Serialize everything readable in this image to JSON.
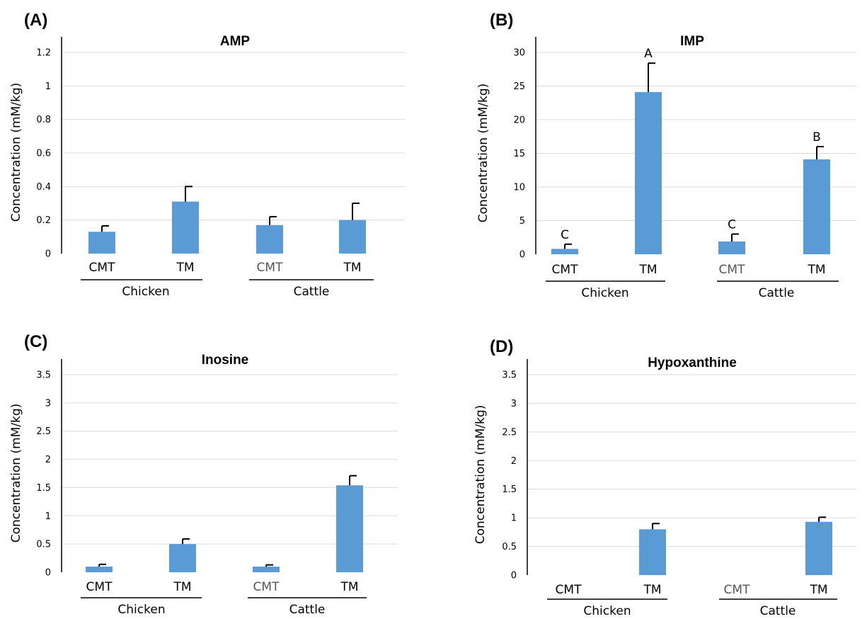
{
  "chart_data": [
    {
      "type": "bar",
      "panel": "(A)",
      "title": "AMP",
      "ylabel": "Concentration (mM/kg)",
      "ylim": [
        0,
        1.2
      ],
      "yticks": [
        "0",
        "0.2",
        "0.4",
        "0.6",
        "0.8",
        "1",
        "1.2"
      ],
      "categories": [
        "CMT",
        "TM",
        "CMT",
        "TM"
      ],
      "groups": [
        "Chicken",
        "Cattle"
      ],
      "values": [
        0.13,
        0.31,
        0.17,
        0.2
      ],
      "errors": [
        0.035,
        0.09,
        0.05,
        0.1
      ],
      "sig_labels": [
        "",
        "",
        "",
        ""
      ],
      "grid": true,
      "bar_color": "#5b9bd5"
    },
    {
      "type": "bar",
      "panel": "(B)",
      "title": "IMP",
      "ylabel": "Concentration (mM/kg)",
      "ylim": [
        0,
        30
      ],
      "yticks": [
        "0",
        "5",
        "10",
        "15",
        "20",
        "25",
        "30"
      ],
      "categories": [
        "CMT",
        "TM",
        "CMT",
        "TM"
      ],
      "groups": [
        "Chicken",
        "Cattle"
      ],
      "values": [
        0.8,
        24.1,
        1.9,
        14.1
      ],
      "errors": [
        0.7,
        4.3,
        1.1,
        1.9
      ],
      "sig_labels": [
        "C",
        "A",
        "C",
        "B"
      ],
      "grid": true,
      "bar_color": "#5b9bd5"
    },
    {
      "type": "bar",
      "panel": "(C)",
      "title": "Inosine",
      "ylabel": "Concentration (mM/kg)",
      "ylim": [
        0,
        3.5
      ],
      "yticks": [
        "0",
        "0.5",
        "1",
        "1.5",
        "2",
        "2.5",
        "3",
        "3.5"
      ],
      "categories": [
        "CMT",
        "TM",
        "CMT",
        "TM"
      ],
      "groups": [
        "Chicken",
        "Cattle"
      ],
      "values": [
        0.1,
        0.5,
        0.1,
        1.54
      ],
      "errors": [
        0.04,
        0.09,
        0.03,
        0.17
      ],
      "sig_labels": [
        "",
        "",
        "",
        ""
      ],
      "grid": true,
      "bar_color": "#5b9bd5"
    },
    {
      "type": "bar",
      "panel": "(D)",
      "title": "Hypoxanthine",
      "ylabel": "Concentration (mM/kg)",
      "ylim": [
        0,
        3.5
      ],
      "yticks": [
        "0",
        "0.5",
        "1",
        "1.5",
        "2",
        "2.5",
        "3",
        "3.5"
      ],
      "categories": [
        "CMT",
        "TM",
        "CMT",
        "TM"
      ],
      "groups": [
        "Chicken",
        "Cattle"
      ],
      "values": [
        0,
        0.8,
        0,
        0.93
      ],
      "errors": [
        0,
        0.1,
        0,
        0.08
      ],
      "sig_labels": [
        "",
        "",
        "",
        ""
      ],
      "grid": true,
      "bar_color": "#5b9bd5"
    }
  ]
}
